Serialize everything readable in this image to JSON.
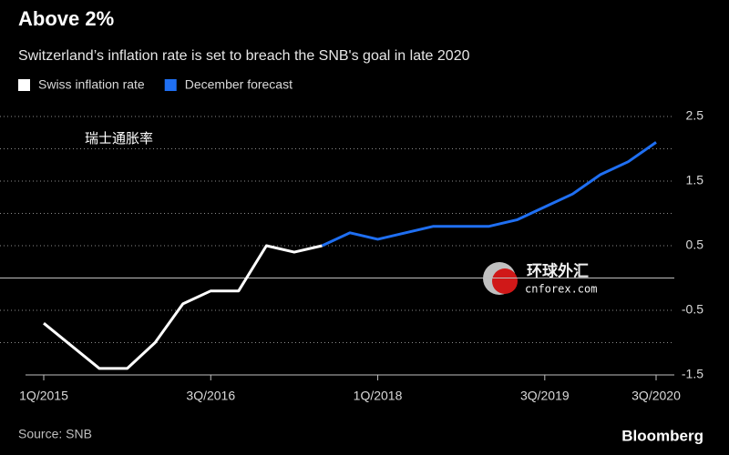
{
  "chart_data": {
    "type": "line",
    "title": "Above 2%",
    "subtitle": "Switzerland’s inflation rate is set to breach the SNB's goal in late 2020",
    "annotation": "瑞士通胀率",
    "watermark": [
      "环球外汇",
      "cnforex.com"
    ],
    "source": "Source: SNB",
    "brand": "Bloomberg",
    "legend": "top-left",
    "categories": [
      "1Q/2015",
      null,
      null,
      null,
      null,
      null,
      "3Q/2016",
      null,
      null,
      null,
      null,
      null,
      "1Q/2018",
      null,
      null,
      null,
      null,
      null,
      "3Q/2019",
      null,
      null,
      null,
      "3Q/2020"
    ],
    "series": [
      {
        "name": "Swiss inflation rate",
        "color": "#ffffff",
        "values": [
          -0.7,
          -1.05,
          -1.4,
          -1.4,
          -1.0,
          -0.4,
          -0.2,
          -0.2,
          0.5,
          0.4,
          0.5,
          null,
          null,
          null,
          null,
          null,
          null,
          null,
          null,
          null,
          null,
          null,
          null
        ]
      },
      {
        "name": "December forecast",
        "color": "#1f6ff2",
        "values": [
          null,
          null,
          null,
          null,
          null,
          null,
          null,
          null,
          null,
          null,
          0.5,
          0.7,
          0.6,
          0.7,
          0.8,
          0.8,
          0.8,
          0.9,
          1.1,
          1.3,
          1.6,
          1.8,
          2.1
        ]
      }
    ],
    "ylim": [
      -1.5,
      2.5
    ],
    "yticks": [
      -1.5,
      -0.5,
      0.5,
      1.5,
      2.5
    ],
    "minor_yticks": [
      -1,
      0,
      1,
      2
    ],
    "grid": true
  }
}
